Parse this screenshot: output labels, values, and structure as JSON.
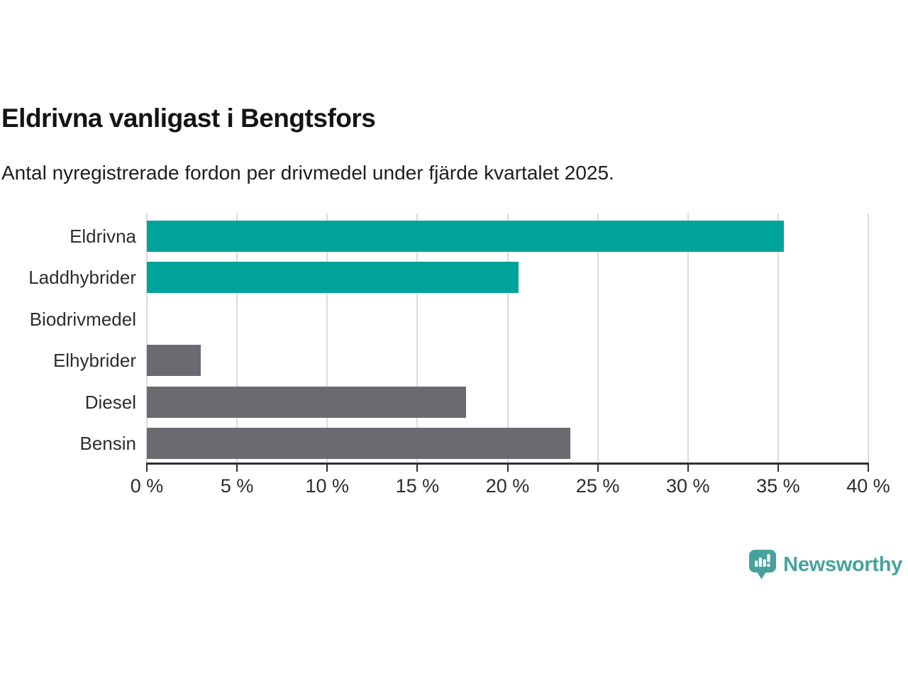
{
  "title": "Eldrivna vanligast i Bengtsfors",
  "subtitle": "Antal nyregistrerade fordon per drivmedel under fjärde kvartalet 2025.",
  "colors": {
    "highlight": "#00A39A",
    "other": "#6A6A70",
    "gridline": "#DCDCDC",
    "axis": "#2F2F2F",
    "brand_teal": "#47A29D"
  },
  "chart_data": {
    "type": "bar",
    "orientation": "horizontal",
    "title": "Eldrivna vanligast i Bengtsfors",
    "subtitle": "Antal nyregistrerade fordon per drivmedel under fjärde kvartalet 2025.",
    "categories": [
      "Eldrivna",
      "Laddhybrider",
      "Biodrivmedel",
      "Elhybrider",
      "Diesel",
      "Bensin"
    ],
    "values": [
      35.3,
      20.6,
      0,
      3.0,
      17.7,
      23.5
    ],
    "unit": "%",
    "bar_colors": [
      "#00A39A",
      "#00A39A",
      "#6A6A70",
      "#6A6A70",
      "#6A6A70",
      "#6A6A70"
    ],
    "xlim": [
      0,
      40
    ],
    "x_ticks": [
      0,
      5,
      10,
      15,
      20,
      25,
      30,
      35,
      40
    ],
    "x_tick_labels": [
      "0 %",
      "5 %",
      "10 %",
      "15 %",
      "20 %",
      "25 %",
      "30 %",
      "35 %",
      "40 %"
    ],
    "grid": true,
    "legend": false
  },
  "branding": {
    "logo": "newsworthy-logo",
    "text": "Newsworthy"
  }
}
